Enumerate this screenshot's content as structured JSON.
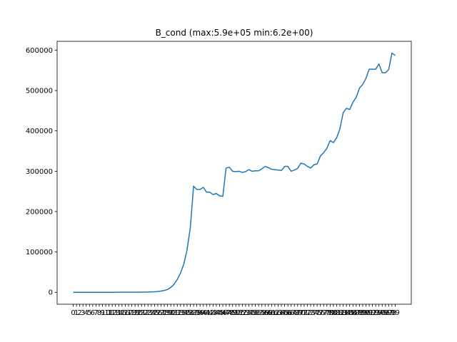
{
  "chart_data": {
    "type": "line",
    "title": "B_cond (max:5.9e+05 min:6.2e+00)",
    "x": [
      0,
      1,
      2,
      3,
      4,
      5,
      6,
      7,
      8,
      9,
      10,
      11,
      12,
      13,
      14,
      15,
      16,
      17,
      18,
      19,
      20,
      21,
      22,
      23,
      24,
      25,
      26,
      27,
      28,
      29,
      30,
      31,
      32,
      33,
      34,
      35,
      36,
      37,
      38,
      39,
      40,
      41,
      42,
      43,
      44,
      45,
      46,
      47,
      48,
      49,
      50,
      51,
      52,
      53,
      54,
      55,
      56,
      57,
      58,
      59,
      60,
      61,
      62,
      63,
      64,
      65,
      66,
      67,
      68,
      69,
      70,
      71,
      72,
      73,
      74,
      75,
      76,
      77,
      78,
      79,
      80,
      81,
      82,
      83,
      84,
      85,
      86,
      87,
      88,
      89,
      90,
      91,
      92,
      93,
      94,
      95,
      96,
      97,
      98,
      99
    ],
    "values": [
      6.2,
      8,
      10,
      13,
      16,
      20,
      25,
      30,
      38,
      45,
      55,
      65,
      75,
      90,
      100,
      115,
      130,
      150,
      170,
      190,
      250,
      350,
      500,
      700,
      1000,
      1400,
      2000,
      3000,
      4500,
      7000,
      12000,
      20000,
      32000,
      48000,
      70000,
      105000,
      160000,
      263000,
      255000,
      255000,
      260000,
      248000,
      248000,
      242000,
      245000,
      239000,
      238000,
      308000,
      310000,
      300000,
      299000,
      300000,
      297000,
      299000,
      304000,
      300000,
      301000,
      301000,
      306000,
      312000,
      309000,
      305000,
      304000,
      303000,
      302000,
      312000,
      312000,
      300000,
      303000,
      307000,
      320000,
      318000,
      312000,
      308000,
      316000,
      318000,
      338000,
      346000,
      357000,
      376000,
      371000,
      383000,
      405000,
      445000,
      456000,
      453000,
      471000,
      483000,
      506000,
      515000,
      530000,
      553000,
      553000,
      553000,
      566000,
      544000,
      544000,
      552000,
      593000,
      587000
    ],
    "color": "#1f77b4",
    "xlim": [
      -4.95,
      103.95
    ],
    "xticks": [
      0,
      1,
      2,
      3,
      4,
      5,
      6,
      7,
      8,
      9,
      10,
      11,
      12,
      13,
      14,
      15,
      16,
      17,
      18,
      19,
      20,
      21,
      22,
      23,
      24,
      25,
      26,
      27,
      28,
      29,
      30,
      31,
      32,
      33,
      34,
      35,
      36,
      37,
      38,
      39,
      40,
      41,
      42,
      43,
      44,
      45,
      46,
      47,
      48,
      49,
      50,
      51,
      52,
      53,
      54,
      55,
      56,
      57,
      58,
      59,
      60,
      61,
      62,
      63,
      64,
      65,
      66,
      67,
      68,
      69,
      70,
      71,
      72,
      73,
      74,
      75,
      76,
      77,
      78,
      79,
      80,
      81,
      82,
      83,
      84,
      85,
      86,
      87,
      88,
      89,
      90,
      91,
      92,
      93,
      94,
      95,
      96,
      97,
      98,
      99
    ],
    "ylim": [
      -29600,
      622000
    ],
    "yticks": [
      0,
      100000,
      200000,
      300000,
      400000,
      500000,
      600000
    ]
  }
}
